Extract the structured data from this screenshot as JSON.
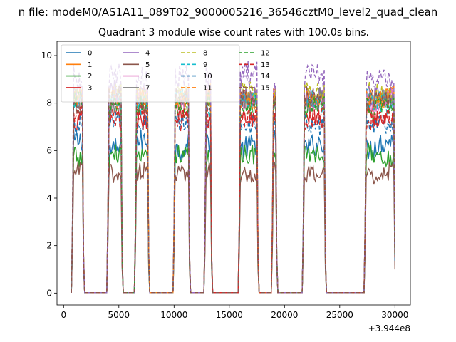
{
  "suptitle": "n file: modeM0/AS1A11_089T02_9000005216_36546cztM0_level2_quad_clean",
  "chart_data": {
    "type": "line",
    "title": "Quadrant 3 module wise count rates with 100.0s bins.",
    "xlabel": "",
    "ylabel": "",
    "x_offset_label": "+3.944e8",
    "xlim": [
      -600,
      31400
    ],
    "ylim": [
      -0.5,
      10.6
    ],
    "xticks": [
      0,
      5000,
      10000,
      15000,
      20000,
      25000,
      30000
    ],
    "xtick_labels": [
      "0",
      "5000",
      "10000",
      "15000",
      "20000",
      "25000",
      "30000"
    ],
    "yticks": [
      0,
      2,
      4,
      6,
      8,
      10
    ],
    "ytick_labels": [
      "0",
      "2",
      "4",
      "6",
      "8",
      "10"
    ],
    "on_intervals": [
      [
        800,
        1800
      ],
      [
        4000,
        5300
      ],
      [
        6500,
        7700
      ],
      [
        10000,
        11400
      ],
      [
        12800,
        13400
      ],
      [
        15900,
        17600
      ],
      [
        18900,
        19300
      ],
      [
        21700,
        23700
      ],
      [
        27300,
        30000
      ]
    ],
    "transition_s": 120,
    "zero_level": 0.02,
    "series": [
      {
        "name": "0",
        "dash": false,
        "color": "#1f77b4",
        "base": 6.2,
        "amp": 0.5
      },
      {
        "name": "1",
        "dash": false,
        "color": "#ff7f0e",
        "base": 8.0,
        "amp": 0.45
      },
      {
        "name": "2",
        "dash": false,
        "color": "#2ca02c",
        "base": 5.7,
        "amp": 0.45
      },
      {
        "name": "3",
        "dash": false,
        "color": "#d62728",
        "base": 7.4,
        "amp": 0.45
      },
      {
        "name": "4",
        "dash": false,
        "color": "#9467bd",
        "base": 8.4,
        "amp": 0.5
      },
      {
        "name": "5",
        "dash": false,
        "color": "#8c564b",
        "base": 5.1,
        "amp": 0.4
      },
      {
        "name": "6",
        "dash": false,
        "color": "#e377c2",
        "base": 8.1,
        "amp": 0.45
      },
      {
        "name": "7",
        "dash": false,
        "color": "#7f7f7f",
        "base": 8.0,
        "amp": 0.45
      },
      {
        "name": "8",
        "dash": true,
        "color": "#bcbd22",
        "base": 8.3,
        "amp": 0.45
      },
      {
        "name": "9",
        "dash": true,
        "color": "#17becf",
        "base": 8.0,
        "amp": 0.45
      },
      {
        "name": "10",
        "dash": true,
        "color": "#1f77b4",
        "base": 7.2,
        "amp": 0.45
      },
      {
        "name": "11",
        "dash": true,
        "color": "#ff7f0e",
        "base": 8.3,
        "amp": 0.45
      },
      {
        "name": "12",
        "dash": true,
        "color": "#2ca02c",
        "base": 7.9,
        "amp": 0.45
      },
      {
        "name": "13",
        "dash": true,
        "color": "#d62728",
        "base": 7.3,
        "amp": 0.45
      },
      {
        "name": "14",
        "dash": true,
        "color": "#9467bd",
        "base": 9.0,
        "amp": 0.55
      },
      {
        "name": "15",
        "dash": true,
        "color": "#8c564b",
        "base": 8.1,
        "amp": 0.45
      }
    ]
  }
}
